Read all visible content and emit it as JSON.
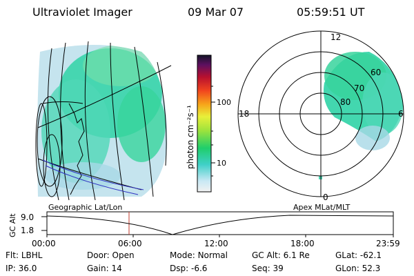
{
  "header": {
    "instrument": "Ultraviolet Imager",
    "date": "09 Mar 07",
    "time": "05:59:51 UT"
  },
  "colorbar": {
    "label": "photon cm⁻²s⁻¹",
    "ticks": [
      "100",
      "10"
    ]
  },
  "polar_plot": {
    "mlt_labels": [
      "12",
      "18",
      "6",
      "0"
    ],
    "mlat_labels": [
      "60",
      "70",
      "80"
    ]
  },
  "timeline": {
    "left_caption": "Geographic Lat/Lon",
    "right_caption": "Apex MLat/MLT",
    "axis_label": "GC Alt",
    "y_ticks": [
      "9.0",
      "1.8"
    ],
    "x_ticks": [
      "00:00",
      "06:00",
      "12:00",
      "18:00",
      "23:59"
    ],
    "current_time_marker": "06:00"
  },
  "status": {
    "row1": [
      {
        "label": "Flt:",
        "value": "LBHL"
      },
      {
        "label": "Door:",
        "value": "Open"
      },
      {
        "label": "Mode:",
        "value": "Normal"
      },
      {
        "label": "GC Alt:",
        "value": "6.1 Re"
      },
      {
        "label": "GLat:",
        "value": "-62.1"
      }
    ],
    "row2": [
      {
        "label": "IP:",
        "value": "36.0"
      },
      {
        "label": "Gain:",
        "value": "14"
      },
      {
        "label": "Dsp:",
        "value": "-6.6"
      },
      {
        "label": "Seq:",
        "value": "39"
      },
      {
        "label": "GLon:",
        "value": "52.3"
      }
    ]
  },
  "colors": {
    "image_dominant": "#2fd3a6",
    "image_low": "#a9d8e6",
    "grid": "#000000",
    "marker": "#c0392b"
  }
}
